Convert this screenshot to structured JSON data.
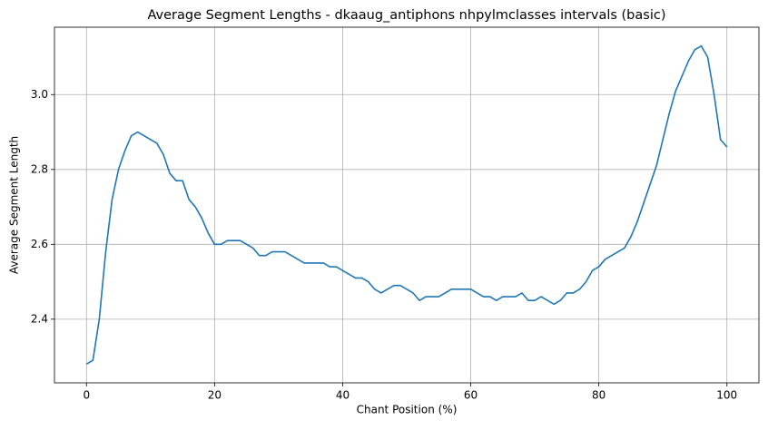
{
  "chart_data": {
    "type": "line",
    "title": "Average Segment Lengths - dkaaug_antiphons nhpylmclasses intervals (basic)",
    "x_label": "Chant Position (%)",
    "y_label": "Average Segment Length",
    "x": [
      0,
      1,
      2,
      3,
      4,
      5,
      6,
      7,
      8,
      9,
      10,
      11,
      12,
      13,
      14,
      15,
      16,
      17,
      18,
      19,
      20,
      21,
      22,
      23,
      24,
      25,
      26,
      27,
      28,
      29,
      30,
      31,
      32,
      33,
      34,
      35,
      36,
      37,
      38,
      39,
      40,
      41,
      42,
      43,
      44,
      45,
      46,
      47,
      48,
      49,
      50,
      51,
      52,
      53,
      54,
      55,
      56,
      57,
      58,
      59,
      60,
      61,
      62,
      63,
      64,
      65,
      66,
      67,
      68,
      69,
      70,
      71,
      72,
      73,
      74,
      75,
      76,
      77,
      78,
      79,
      80,
      81,
      82,
      83,
      84,
      85,
      86,
      87,
      88,
      89,
      90,
      91,
      92,
      93,
      94,
      95,
      96,
      97,
      98,
      99,
      100
    ],
    "series": [
      {
        "name": "Average Segment Length",
        "color": "#1f77b4",
        "values": [
          2.28,
          2.29,
          2.4,
          2.58,
          2.72,
          2.8,
          2.85,
          2.89,
          2.9,
          2.89,
          2.88,
          2.87,
          2.84,
          2.79,
          2.77,
          2.77,
          2.72,
          2.7,
          2.67,
          2.63,
          2.6,
          2.6,
          2.61,
          2.61,
          2.61,
          2.6,
          2.59,
          2.57,
          2.57,
          2.58,
          2.58,
          2.58,
          2.57,
          2.56,
          2.55,
          2.55,
          2.55,
          2.55,
          2.54,
          2.54,
          2.53,
          2.52,
          2.51,
          2.51,
          2.5,
          2.48,
          2.47,
          2.48,
          2.49,
          2.49,
          2.48,
          2.47,
          2.45,
          2.46,
          2.46,
          2.46,
          2.47,
          2.48,
          2.48,
          2.48,
          2.48,
          2.47,
          2.46,
          2.46,
          2.45,
          2.46,
          2.46,
          2.46,
          2.47,
          2.45,
          2.45,
          2.46,
          2.45,
          2.44,
          2.45,
          2.47,
          2.47,
          2.48,
          2.5,
          2.53,
          2.54,
          2.56,
          2.57,
          2.58,
          2.59,
          2.62,
          2.66,
          2.71,
          2.76,
          2.81,
          2.88,
          2.95,
          3.01,
          3.05,
          3.09,
          3.12,
          3.13,
          3.1,
          3.0,
          2.88,
          2.86
        ]
      }
    ],
    "xlim": [
      -5,
      105
    ],
    "ylim": [
      2.23,
      3.18
    ],
    "xticks": [
      0,
      20,
      40,
      60,
      80,
      100
    ],
    "yticks": [
      2.4,
      2.6,
      2.8,
      {
        "value": 3,
        "label": "3.0"
      }
    ],
    "grid": true
  }
}
